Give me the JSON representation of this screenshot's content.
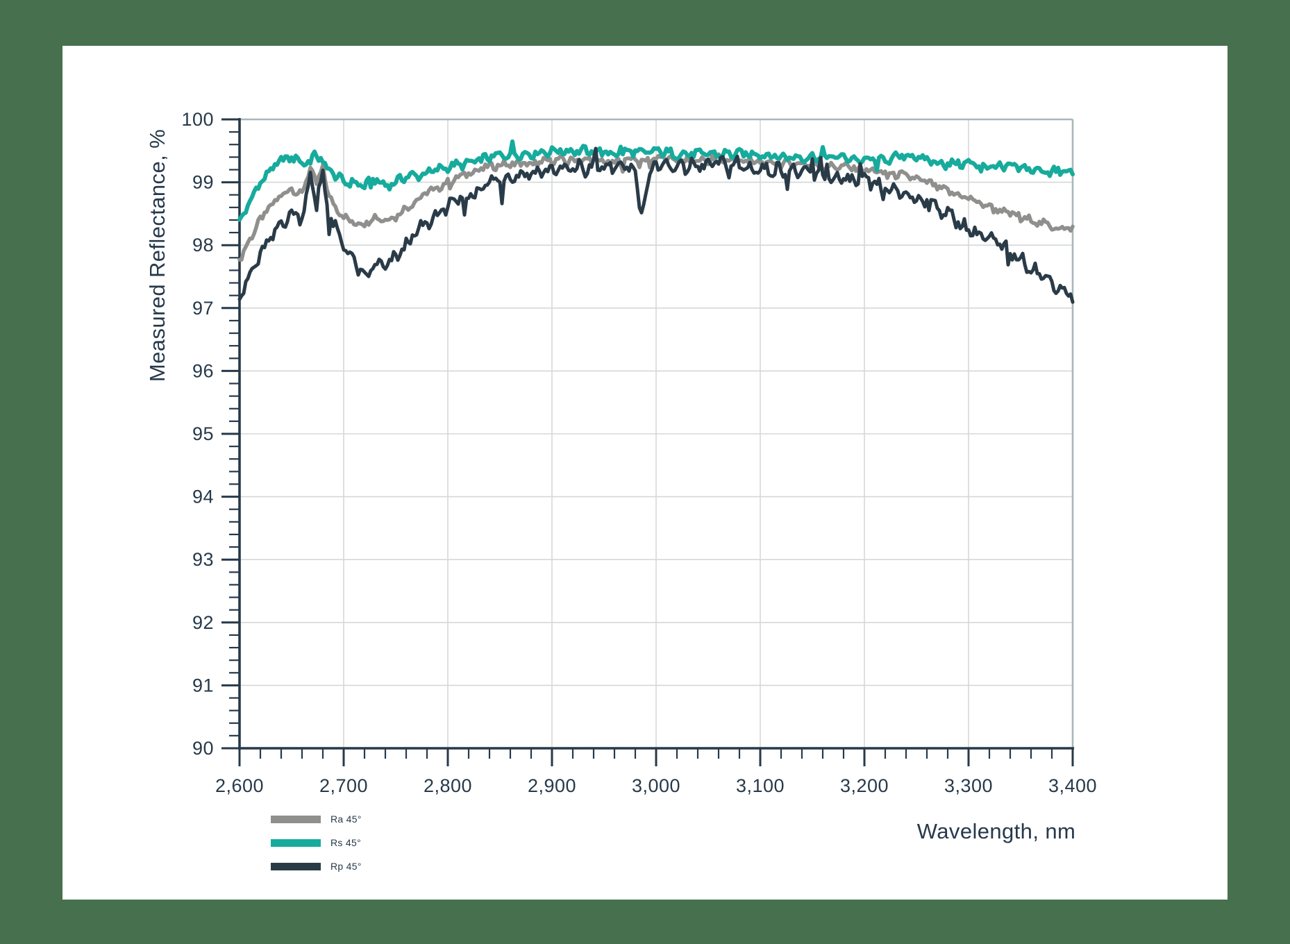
{
  "page": {
    "frame_color": "#47704e",
    "panel_color": "#ffffff"
  },
  "chart_data": {
    "type": "line",
    "title": "",
    "xlabel": "Wavelength, nm",
    "ylabel": "Measured Reflectance, %",
    "xlim": [
      2600,
      3400
    ],
    "ylim": [
      90,
      100
    ],
    "x_major_tick_step": 100,
    "x_minor_tick_step": 20,
    "y_major_tick_step": 1,
    "y_minor_tick_step": 0.2,
    "x_tick_labels": [
      "2,600",
      "2,700",
      "2,800",
      "2,900",
      "3,000",
      "3,100",
      "3,200",
      "3,300",
      "3,400"
    ],
    "y_tick_labels": [
      "90",
      "91",
      "92",
      "93",
      "94",
      "95",
      "96",
      "97",
      "98",
      "99",
      "100"
    ],
    "grid": true,
    "legend_position": "bottom-left",
    "axis_color": "#27394a",
    "grid_color": "#d5d8d8",
    "border_color": "#a9b6bb",
    "x": [
      2600,
      2610,
      2620,
      2630,
      2640,
      2650,
      2660,
      2668,
      2674,
      2680,
      2686,
      2700,
      2710,
      2720,
      2730,
      2740,
      2750,
      2760,
      2770,
      2780,
      2790,
      2800,
      2820,
      2840,
      2860,
      2880,
      2900,
      2920,
      2940,
      2960,
      2980,
      2984,
      3000,
      3020,
      3040,
      3060,
      3080,
      3100,
      3120,
      3140,
      3160,
      3180,
      3200,
      3220,
      3240,
      3260,
      3280,
      3300,
      3320,
      3340,
      3360,
      3380,
      3400
    ],
    "series": [
      {
        "name": "Ra 45°",
        "color": "#8f8f8d",
        "width": 5.5,
        "noise": 0.05,
        "wave": 0.025,
        "spike_down": 0.12,
        "spike_up": 0.08,
        "values": [
          97.75,
          98.1,
          98.4,
          98.6,
          98.8,
          98.9,
          98.8,
          99.25,
          98.95,
          99.25,
          98.75,
          98.45,
          98.35,
          98.35,
          98.45,
          98.4,
          98.45,
          98.6,
          98.7,
          98.85,
          98.9,
          99.0,
          99.15,
          99.25,
          99.3,
          99.3,
          99.35,
          99.35,
          99.35,
          99.3,
          99.4,
          99.3,
          99.4,
          99.35,
          99.35,
          99.35,
          99.35,
          99.3,
          99.3,
          99.3,
          99.25,
          99.25,
          99.2,
          99.15,
          99.1,
          99.0,
          98.85,
          98.75,
          98.6,
          98.5,
          98.4,
          98.3,
          98.25
        ]
      },
      {
        "name": "Rs 45°",
        "color": "#16ab9c",
        "width": 6,
        "noise": 0.055,
        "wave": 0.035,
        "spike_down": 0.1,
        "spike_up": 0.14,
        "values": [
          98.35,
          98.7,
          99.0,
          99.2,
          99.35,
          99.4,
          99.3,
          99.35,
          99.45,
          99.3,
          99.2,
          99.0,
          99.0,
          98.95,
          99.05,
          98.95,
          99.0,
          99.1,
          99.1,
          99.15,
          99.2,
          99.25,
          99.3,
          99.4,
          99.45,
          99.45,
          99.5,
          99.5,
          99.5,
          99.45,
          99.5,
          99.45,
          99.5,
          99.45,
          99.45,
          99.45,
          99.45,
          99.45,
          99.4,
          99.4,
          99.4,
          99.4,
          99.35,
          99.35,
          99.45,
          99.35,
          99.3,
          99.3,
          99.25,
          99.25,
          99.2,
          99.2,
          99.15
        ]
      },
      {
        "name": "Rp 45°",
        "color": "#2a3b48",
        "width": 5,
        "noise": 0.08,
        "wave": 0.06,
        "spike_down": 0.42,
        "spike_up": 0.28,
        "values": [
          97.2,
          97.5,
          97.85,
          98.1,
          98.35,
          98.5,
          98.45,
          99.1,
          98.6,
          99.15,
          98.45,
          98.0,
          97.75,
          97.45,
          97.7,
          97.65,
          97.8,
          98.0,
          98.2,
          98.35,
          98.5,
          98.6,
          98.8,
          99.0,
          99.1,
          99.15,
          99.2,
          99.2,
          99.25,
          99.2,
          99.3,
          98.55,
          99.3,
          99.25,
          99.25,
          99.3,
          99.25,
          99.2,
          99.2,
          99.15,
          99.1,
          99.05,
          99.0,
          98.9,
          98.8,
          98.7,
          98.5,
          98.25,
          98.1,
          97.9,
          97.65,
          97.4,
          97.2
        ]
      }
    ]
  }
}
